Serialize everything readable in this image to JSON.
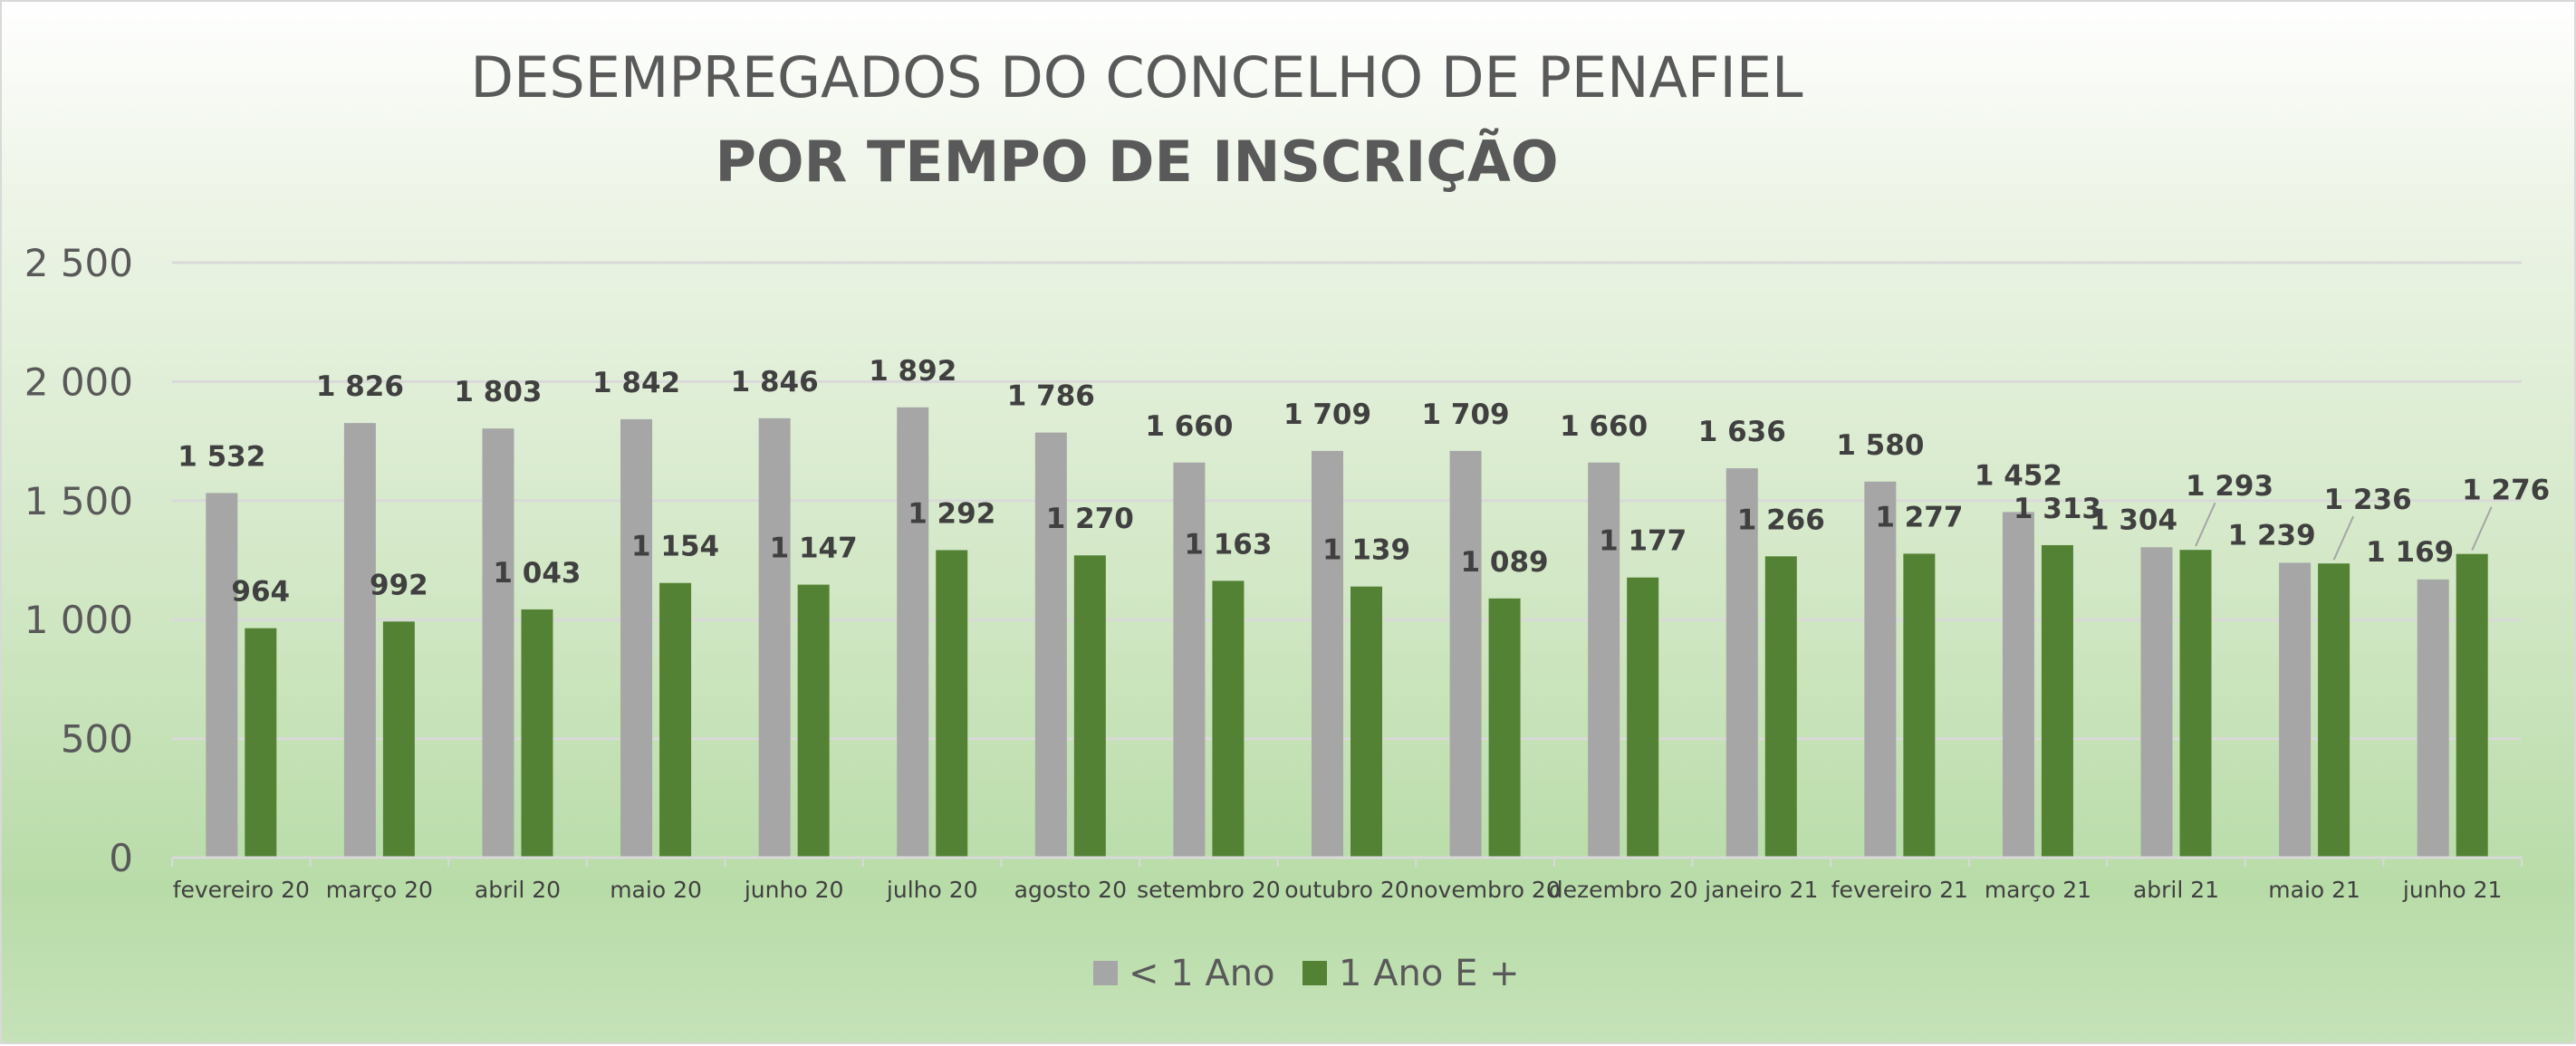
{
  "chart_data": {
    "type": "bar",
    "title": "DESEMPREGADOS DO CONCELHO DE PENAFIEL",
    "subtitle": "POR TEMPO DE INSCRIÇÃO",
    "xlabel": "",
    "ylabel": "",
    "ylim": [
      0,
      2500
    ],
    "yticks": [
      0,
      500,
      1000,
      1500,
      2000,
      2500
    ],
    "ytick_labels": [
      "0",
      "500",
      "1 000",
      "1 500",
      "2 000",
      "2 500"
    ],
    "grid": true,
    "legend_position": "bottom",
    "categories": [
      "fevereiro 20",
      "março 20",
      "abril 20",
      "maio 20",
      "junho 20",
      "julho 20",
      "agosto 20",
      "setembro 20",
      "outubro 20",
      "novembro 20",
      "dezembro 20",
      "janeiro 21",
      "fevereiro 21",
      "março 21",
      "abril 21",
      "maio 21",
      "junho 21"
    ],
    "series": [
      {
        "name": "< 1 Ano",
        "color": "#a6a6a6",
        "values": [
          1532,
          1826,
          1803,
          1842,
          1846,
          1892,
          1786,
          1660,
          1709,
          1709,
          1660,
          1636,
          1580,
          1452,
          1304,
          1239,
          1169
        ],
        "labels": [
          "1 532",
          "1 826",
          "1 803",
          "1 842",
          "1 846",
          "1 892",
          "1 786",
          "1 660",
          "1 709",
          "1 709",
          "1 660",
          "1 636",
          "1 580",
          "1 452",
          "1 304",
          "1 239",
          "1 169"
        ]
      },
      {
        "name": "1 Ano E +",
        "color": "#548235",
        "values": [
          964,
          992,
          1043,
          1154,
          1147,
          1292,
          1270,
          1163,
          1139,
          1089,
          1177,
          1266,
          1277,
          1313,
          1293,
          1236,
          1276
        ],
        "labels": [
          "964",
          "992",
          "1 043",
          "1 154",
          "1 147",
          "1 292",
          "1 270",
          "1 163",
          "1 139",
          "1 089",
          "1 177",
          "1 266",
          "1 277",
          "1 313",
          "1 293",
          "1 236",
          "1 276"
        ]
      }
    ]
  }
}
